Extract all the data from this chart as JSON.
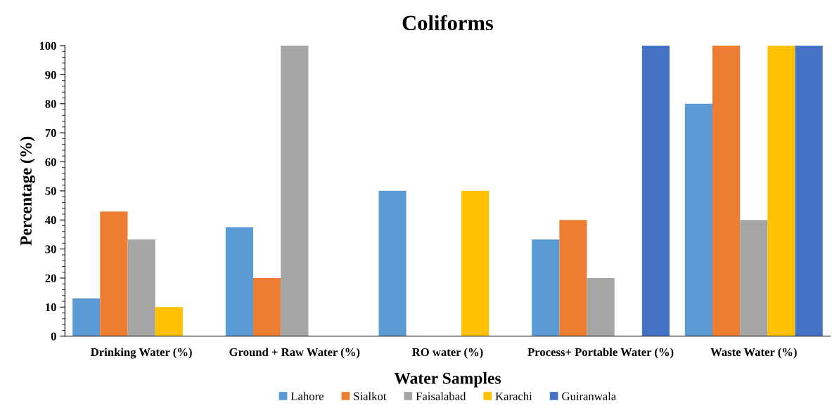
{
  "chart_data": {
    "type": "bar",
    "title": "Coliforms",
    "xlabel": "Water Samples",
    "ylabel": "Percentage (%)",
    "categories": [
      "Drinking Water (%)",
      "Ground + Raw Water (%)",
      "RO water (%)",
      "Process+ Portable Water (%)",
      "Waste Water (%)"
    ],
    "series": [
      {
        "name": "Lahore",
        "color": "#5b9bd5",
        "values": [
          13,
          37.5,
          50,
          33.3,
          80
        ]
      },
      {
        "name": "Sialkot",
        "color": "#ed7d31",
        "values": [
          42.9,
          20,
          0,
          40,
          100
        ]
      },
      {
        "name": "Faisalabad",
        "color": "#a5a5a5",
        "values": [
          33.3,
          100,
          0,
          20,
          40
        ]
      },
      {
        "name": "Karachi",
        "color": "#ffc000",
        "values": [
          10,
          0,
          50,
          0,
          100
        ]
      },
      {
        "name": "Guiranwala",
        "color": "#4472c4",
        "values": [
          0,
          0,
          0,
          100,
          100
        ]
      }
    ],
    "ylim": [
      0,
      100
    ],
    "yticks": [
      0,
      10,
      20,
      30,
      40,
      50,
      60,
      70,
      80,
      90,
      100
    ],
    "grid": false,
    "legend": "bottom"
  }
}
